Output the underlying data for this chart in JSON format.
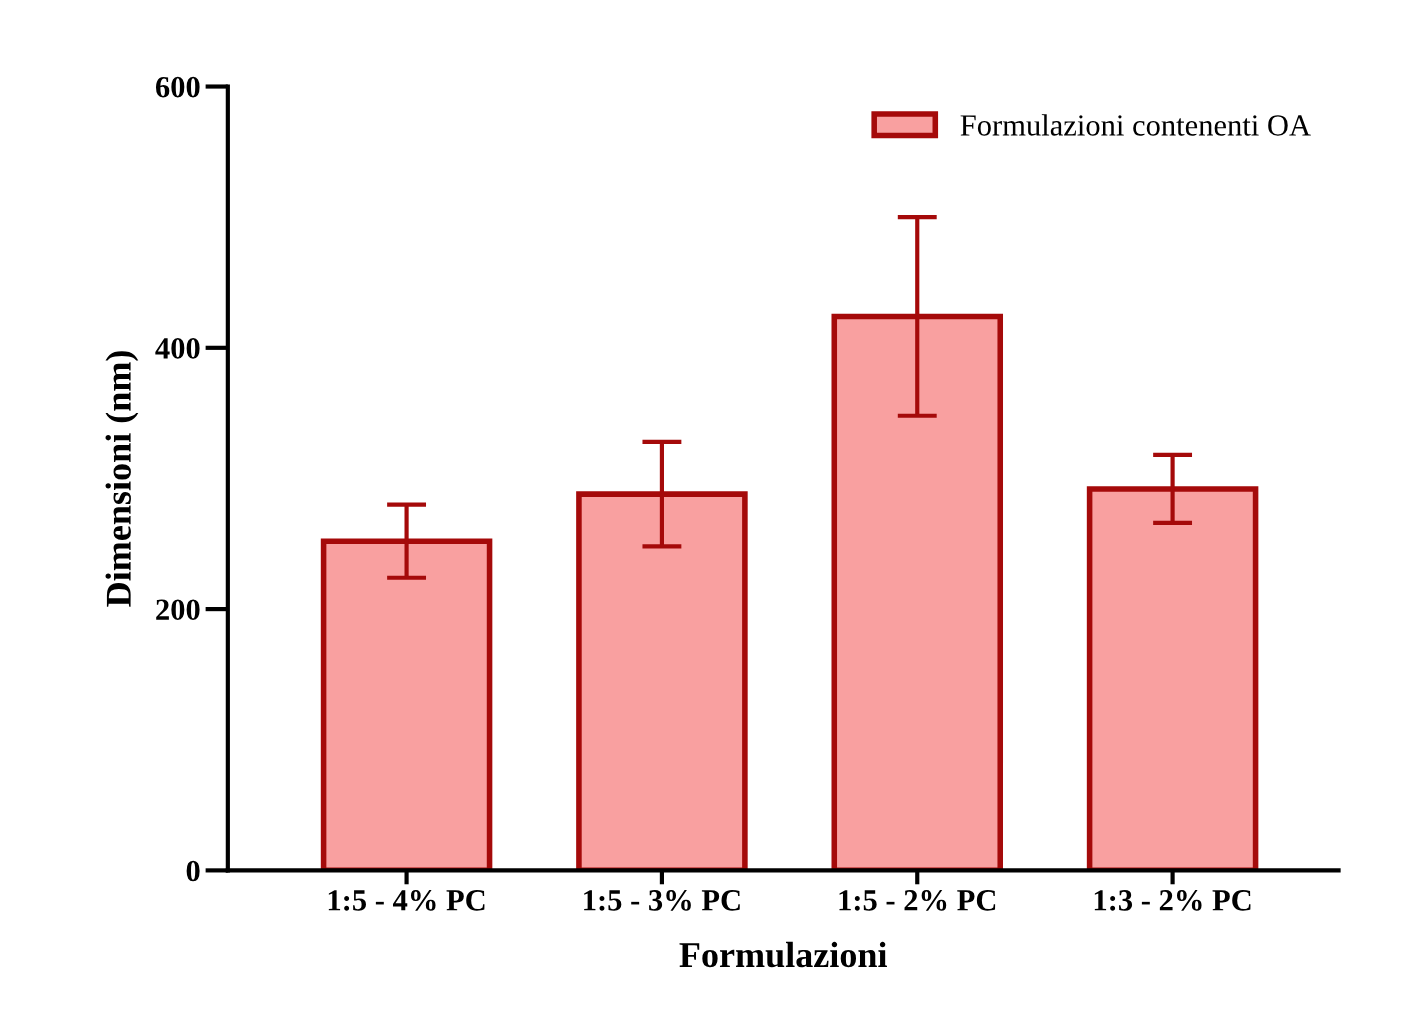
{
  "chart_data": {
    "type": "bar",
    "xlabel": "Formulazioni",
    "ylabel": "Dimensioni (nm)",
    "categories": [
      "1:5 - 4% PC",
      "1:5 - 3% PC",
      "1:5 - 2% PC",
      "1:3 - 2% PC"
    ],
    "series": [
      {
        "name": "Formulazioni contenenti OA",
        "color": "#f9a0a0",
        "values": [
          252,
          288,
          424,
          292
        ],
        "errors": [
          28,
          40,
          76,
          26
        ]
      }
    ],
    "ylim": [
      0,
      600
    ],
    "yticks": [
      0,
      200,
      400,
      600
    ],
    "grid": false,
    "legend": "top right"
  }
}
